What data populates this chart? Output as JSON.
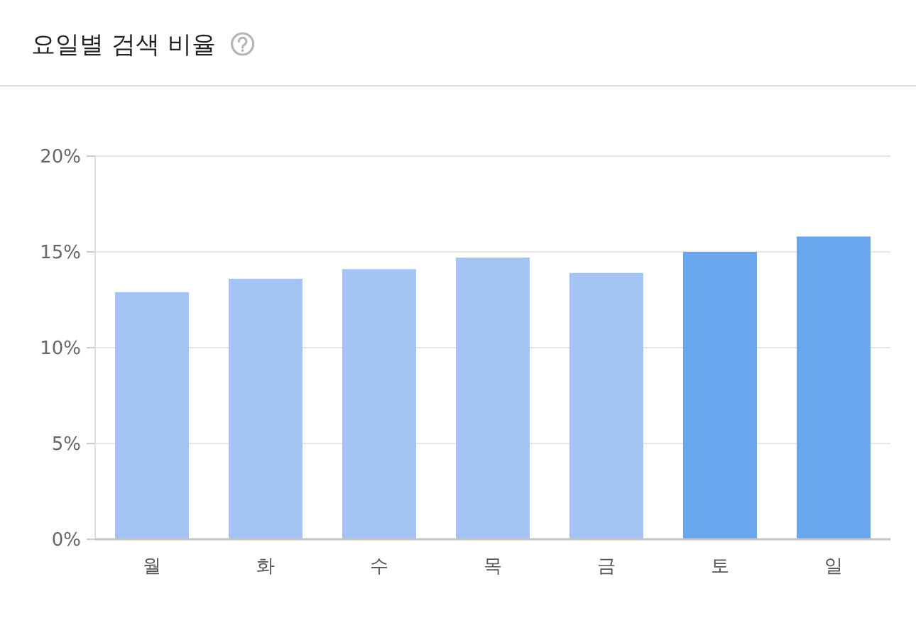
{
  "chart_data": {
    "type": "bar",
    "title": "요일별 검색 비율",
    "categories": [
      "월",
      "화",
      "수",
      "목",
      "금",
      "토",
      "일"
    ],
    "values": [
      12.9,
      13.6,
      14.1,
      14.7,
      13.9,
      15.0,
      15.8
    ],
    "colors": [
      "#a3c4f5",
      "#a3c4f5",
      "#a3c4f5",
      "#a3c4f5",
      "#a3c4f5",
      "#68a6ed",
      "#68a6ed"
    ],
    "ylim": [
      0,
      20
    ],
    "yticks": [
      {
        "value": 0,
        "label": "0%"
      },
      {
        "value": 5,
        "label": "5%"
      },
      {
        "value": 10,
        "label": "10%"
      },
      {
        "value": 15,
        "label": "15%"
      },
      {
        "value": 20,
        "label": "20%"
      }
    ],
    "grid": "y"
  }
}
